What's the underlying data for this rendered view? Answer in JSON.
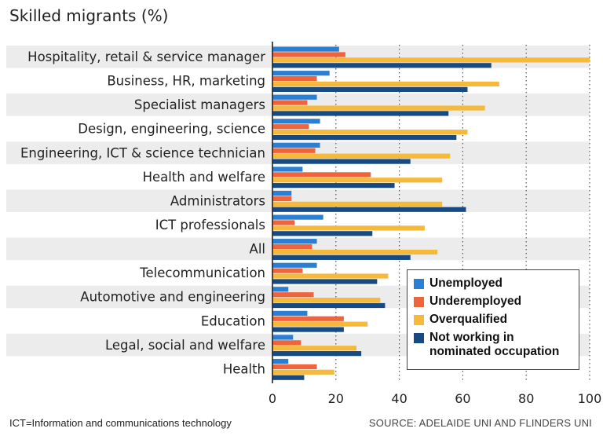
{
  "title": "Skilled migrants (%)",
  "footnote": "ICT=Information and communications technology",
  "source": "SOURCE: ADELAIDE UNI AND FLINDERS UNI",
  "colors": {
    "unemployed": "#2a7fd4",
    "underemployed": "#f0643c",
    "overqualified": "#f5b93c",
    "not_working": "#174a82",
    "band": "#ececec"
  },
  "legend": [
    {
      "key": "unemployed",
      "label": "Unemployed"
    },
    {
      "key": "underemployed",
      "label": "Underemployed"
    },
    {
      "key": "overqualified",
      "label": "Overqualified"
    },
    {
      "key": "not_working",
      "label": "Not working in nominated occupation"
    }
  ],
  "chart_data": {
    "type": "bar",
    "orientation": "horizontal",
    "title": "Skilled migrants (%)",
    "xlim": [
      0,
      100
    ],
    "xticks": [
      0,
      20,
      40,
      60,
      80,
      100
    ],
    "grid": "vertical dotted",
    "legend_position": "bottom-right",
    "categories": [
      "Hospitality, retail & service manager",
      "Business, HR, marketing",
      "Specialist managers",
      "Design, engineering, science",
      "Engineering, ICT & science technician",
      "Health and welfare",
      "Administrators",
      "ICT professionals",
      "All",
      "Telecommunication",
      "Automotive and engineering",
      "Education",
      "Legal, social and welfare",
      "Health"
    ],
    "series": [
      {
        "name": "Unemployed",
        "key": "unemployed",
        "values": [
          21,
          18,
          14,
          15,
          15,
          9.5,
          6,
          16,
          14,
          14,
          5,
          11,
          6.5,
          5
        ]
      },
      {
        "name": "Underemployed",
        "key": "underemployed",
        "values": [
          23,
          14,
          11,
          11.5,
          13.5,
          31,
          6,
          7,
          12.5,
          9.5,
          13,
          22.5,
          9,
          14
        ]
      },
      {
        "name": "Overqualified",
        "key": "overqualified",
        "values": [
          100,
          71.5,
          67,
          61.5,
          56,
          53.5,
          53.5,
          48,
          52,
          36.5,
          34,
          30,
          26.5,
          19.5
        ]
      },
      {
        "name": "Not working in nominated occupation",
        "key": "not_working",
        "values": [
          69,
          61.5,
          55.5,
          58,
          43.5,
          38.5,
          61,
          31.5,
          43.5,
          33,
          35.5,
          22.5,
          28,
          10
        ]
      }
    ]
  }
}
